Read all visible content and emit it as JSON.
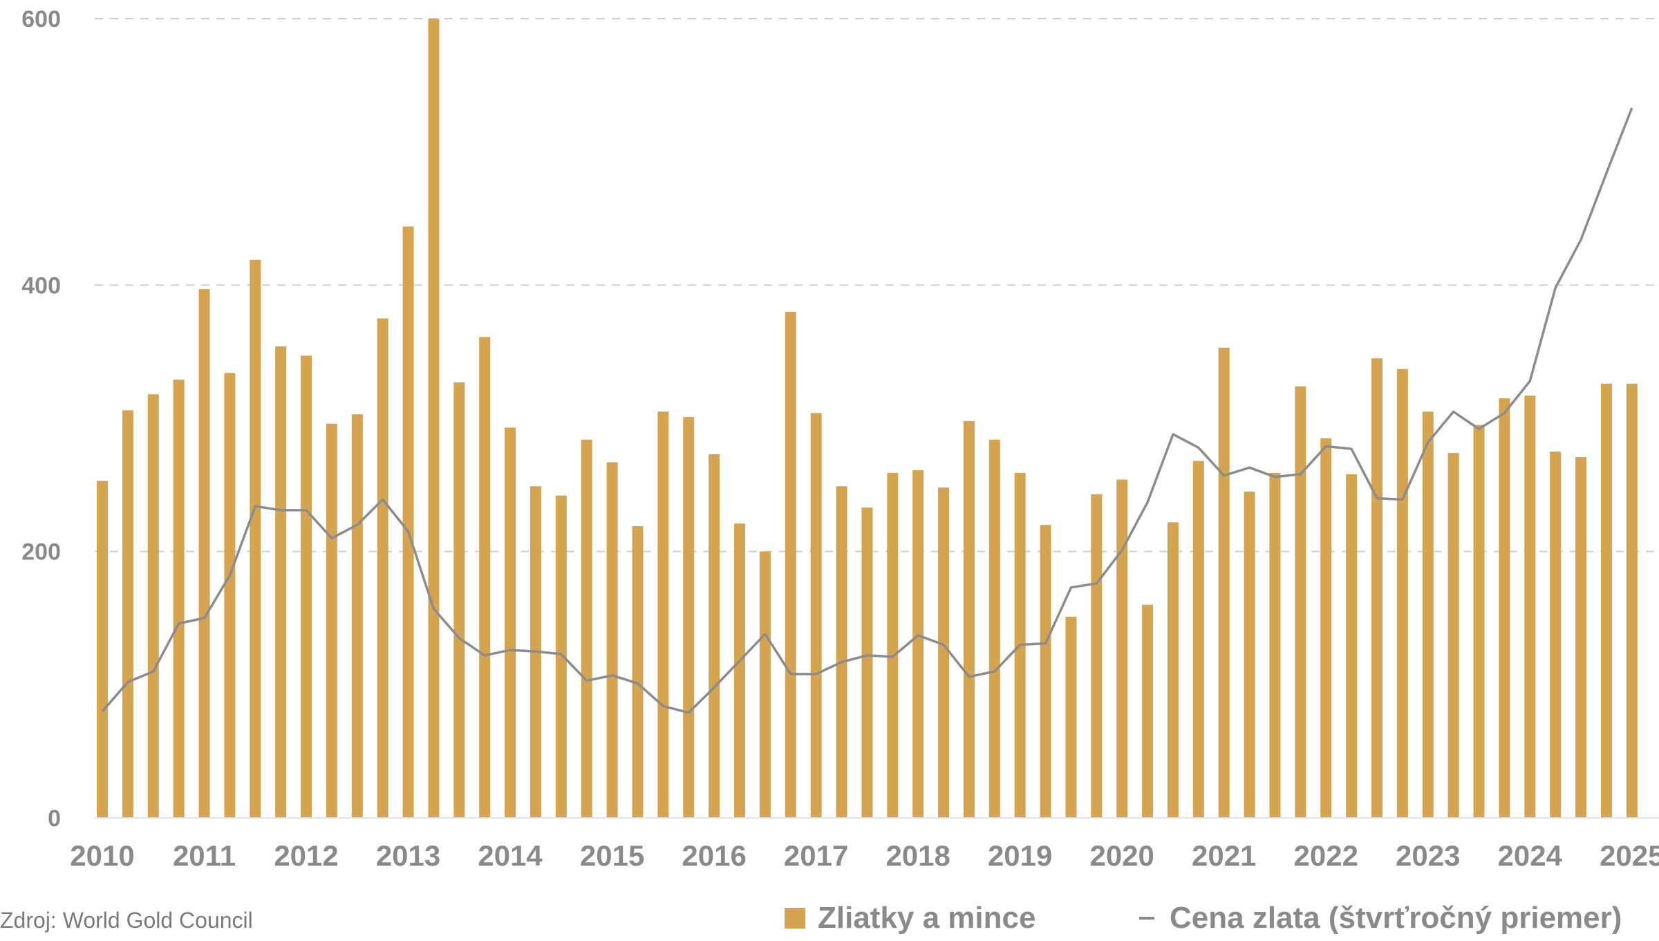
{
  "source": "Zdroj: World Gold Council",
  "colors": {
    "bar": "#D4A451",
    "line": "#8C8C8C",
    "grid": "#CFCFCF",
    "text": "#8A8A8A"
  },
  "chart_data": {
    "type": "bar",
    "title": "",
    "xlabel": "",
    "ylabel": "",
    "ylim": [
      0,
      600
    ],
    "yticks": [
      "0",
      "200",
      "400",
      "600"
    ],
    "year_labels": [
      "2010",
      "2011",
      "2012",
      "2013",
      "2014",
      "2015",
      "2016",
      "2017",
      "2018",
      "2019",
      "2020",
      "2021",
      "2022",
      "2023",
      "2024",
      "2025"
    ],
    "legend": {
      "placement": "bottom",
      "bar_label": "Zliatky a mince",
      "line_label": "Cena zlata (štvrťročný priemer)"
    },
    "grid": "horizontal dashed",
    "series": [
      {
        "name": "Zliatky a mince",
        "type": "bar",
        "values": [
          253,
          306,
          318,
          329,
          397,
          334,
          419,
          354,
          347,
          296,
          303,
          375,
          444,
          600,
          327,
          361,
          293,
          249,
          242,
          284,
          267,
          219,
          305,
          301,
          273,
          221,
          200,
          380,
          304,
          249,
          233,
          259,
          261,
          248,
          298,
          284,
          259,
          220,
          151,
          243,
          254,
          160,
          222,
          268,
          353,
          245,
          259,
          324,
          285,
          258,
          345,
          337,
          305,
          274,
          295,
          315,
          317,
          275,
          271,
          326,
          326
        ]
      },
      {
        "name": "Cena zlata (štvrťročný priemer)",
        "type": "line",
        "values": [
          80,
          102,
          110,
          146,
          150,
          182,
          234,
          231,
          231,
          210,
          220,
          239,
          215,
          157,
          135,
          122,
          126,
          125,
          123,
          103,
          107,
          101,
          84,
          79,
          98,
          118,
          138,
          108,
          108,
          117,
          122,
          121,
          137,
          130,
          106,
          110,
          130,
          131,
          173,
          176,
          201,
          237,
          288,
          278,
          257,
          263,
          256,
          258,
          279,
          277,
          240,
          239,
          282,
          305,
          292,
          304,
          328,
          398,
          434,
          484,
          533
        ]
      }
    ]
  }
}
